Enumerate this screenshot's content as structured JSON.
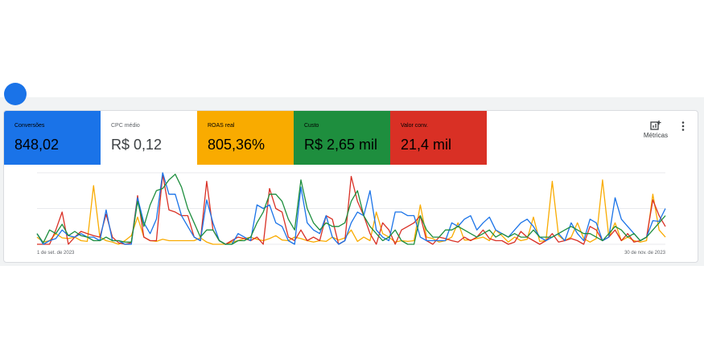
{
  "header_hint": {
    "left_text": "",
    "right_text": ""
  },
  "tiles": [
    {
      "label": "Conversões",
      "value": "848,02",
      "color": "#1a73e8",
      "style": "dark"
    },
    {
      "label": "CPC médio",
      "value": "R$ 0,12",
      "color": "#ffffff",
      "style": "light"
    },
    {
      "label": "ROAS real",
      "value": "805,36%",
      "color": "#f9ab00",
      "style": "amber"
    },
    {
      "label": "Custo",
      "value": "R$ 2,65 mil",
      "color": "#1e8e3e",
      "style": "dark"
    },
    {
      "label": "Valor conv.",
      "value": "21,4 mil",
      "color": "#d93025",
      "style": "dark"
    }
  ],
  "toolbar": {
    "metrics_label": "Métricas",
    "more_icon": "more-vert-icon"
  },
  "chart_data": {
    "type": "line",
    "x_start_label": "1 de set. de 2023",
    "x_end_label": "30 de nov. de 2023",
    "ylim": [
      0,
      100
    ],
    "grid": true,
    "series": [
      {
        "color": "#f9ab00",
        "values": [
          10,
          3,
          5,
          15,
          9,
          8,
          10,
          5,
          4,
          82,
          10,
          5,
          3,
          0,
          5,
          12,
          38,
          10,
          5,
          4,
          7,
          5,
          5,
          5,
          5,
          5,
          9,
          3,
          0,
          0,
          0,
          3,
          5,
          8,
          10,
          7,
          5,
          8,
          12,
          6,
          5,
          10,
          8,
          5,
          3,
          5,
          4,
          10,
          6,
          9,
          20,
          4,
          10,
          5,
          45,
          15,
          10,
          3,
          5,
          4,
          5,
          55,
          10,
          8,
          3,
          5,
          10,
          30,
          6,
          6,
          8,
          10,
          5,
          20,
          12,
          3,
          10,
          5,
          7,
          38,
          4,
          5,
          88,
          12,
          5,
          10,
          30,
          8,
          3,
          8,
          90,
          10,
          30,
          5,
          10,
          5,
          3,
          5,
          70,
          20,
          10
        ]
      },
      {
        "color": "#d93025",
        "values": [
          0,
          0,
          0,
          20,
          45,
          0,
          10,
          18,
          15,
          12,
          10,
          42,
          10,
          2,
          0,
          2,
          68,
          10,
          5,
          5,
          98,
          48,
          45,
          40,
          40,
          10,
          5,
          88,
          20,
          5,
          0,
          5,
          10,
          8,
          5,
          10,
          0,
          78,
          50,
          45,
          10,
          5,
          20,
          5,
          10,
          5,
          40,
          35,
          0,
          5,
          95,
          60,
          40,
          15,
          0,
          30,
          20,
          0,
          20,
          25,
          30,
          40,
          5,
          0,
          10,
          8,
          5,
          3,
          10,
          5,
          10,
          20,
          8,
          5,
          5,
          0,
          3,
          18,
          10,
          5,
          0,
          5,
          15,
          3,
          5,
          8,
          5,
          0,
          25,
          20,
          5,
          10,
          20,
          5,
          15,
          3,
          5,
          10,
          62,
          40,
          25
        ]
      },
      {
        "color": "#1a73e8",
        "values": [
          15,
          0,
          5,
          8,
          20,
          12,
          10,
          15,
          10,
          10,
          5,
          48,
          5,
          5,
          0,
          0,
          65,
          30,
          15,
          35,
          100,
          70,
          70,
          40,
          25,
          10,
          5,
          62,
          30,
          5,
          0,
          0,
          15,
          10,
          5,
          55,
          50,
          55,
          30,
          25,
          5,
          0,
          80,
          30,
          20,
          15,
          40,
          10,
          0,
          5,
          30,
          45,
          40,
          75,
          20,
          10,
          5,
          45,
          45,
          40,
          40,
          10,
          5,
          5,
          5,
          5,
          30,
          25,
          35,
          40,
          20,
          30,
          38,
          20,
          15,
          10,
          20,
          30,
          35,
          25,
          10,
          5,
          10,
          15,
          5,
          30,
          15,
          5,
          35,
          30,
          5,
          10,
          65,
          35,
          25,
          15,
          5,
          10,
          33,
          32,
          50
        ]
      },
      {
        "color": "#1e8e3e",
        "values": [
          15,
          2,
          20,
          15,
          28,
          12,
          18,
          12,
          10,
          5,
          5,
          10,
          5,
          5,
          3,
          3,
          60,
          25,
          55,
          75,
          78,
          90,
          98,
          80,
          50,
          30,
          10,
          20,
          20,
          5,
          0,
          0,
          5,
          5,
          10,
          30,
          45,
          70,
          70,
          60,
          35,
          20,
          90,
          50,
          30,
          20,
          30,
          25,
          25,
          30,
          60,
          75,
          40,
          25,
          15,
          5,
          10,
          20,
          5,
          0,
          0,
          40,
          20,
          10,
          10,
          20,
          20,
          25,
          20,
          15,
          10,
          15,
          20,
          10,
          15,
          10,
          15,
          10,
          10,
          20,
          10,
          10,
          10,
          15,
          20,
          25,
          20,
          15,
          15,
          10,
          5,
          15,
          25,
          20,
          10,
          15,
          5,
          10,
          20,
          30,
          40
        ]
      }
    ]
  }
}
